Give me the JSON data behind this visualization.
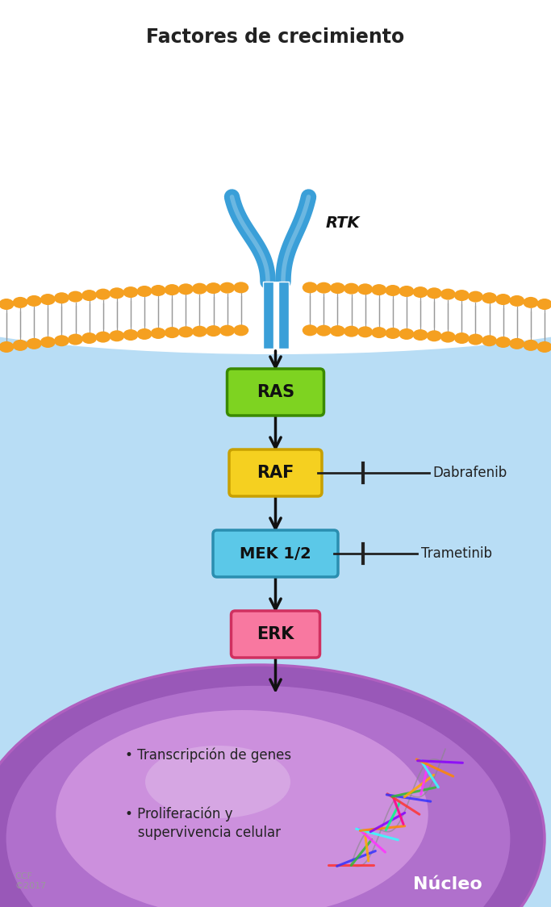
{
  "title": "Factores de crecimiento",
  "bg_color_cell": "#b8ddf5",
  "membrane_orange": "#f5a020",
  "rtk_color": "#3a9fd8",
  "ras_color": "#7ed321",
  "ras_border": "#3a8a00",
  "raf_color": "#f5d020",
  "raf_border": "#c8a000",
  "mek_color": "#5bc8e8",
  "mek_border": "#2a8eb0",
  "erk_color": "#f878a0",
  "erk_border": "#d03060",
  "arrow_color": "#111111",
  "nucleo_text": "Núcleo",
  "ccf_text": "CCF\n©2017",
  "rtk_label": "RTK",
  "ras_label": "RAS",
  "raf_label": "RAF",
  "mek_label": "MEK 1/2",
  "erk_label": "ERK",
  "dabrafenib_label": "Dabrafenib",
  "trametinib_label": "Trametinib",
  "bullet1": "• Transcripción de genes",
  "bullet2": "• Proliferación y\n   supervivencia celular"
}
